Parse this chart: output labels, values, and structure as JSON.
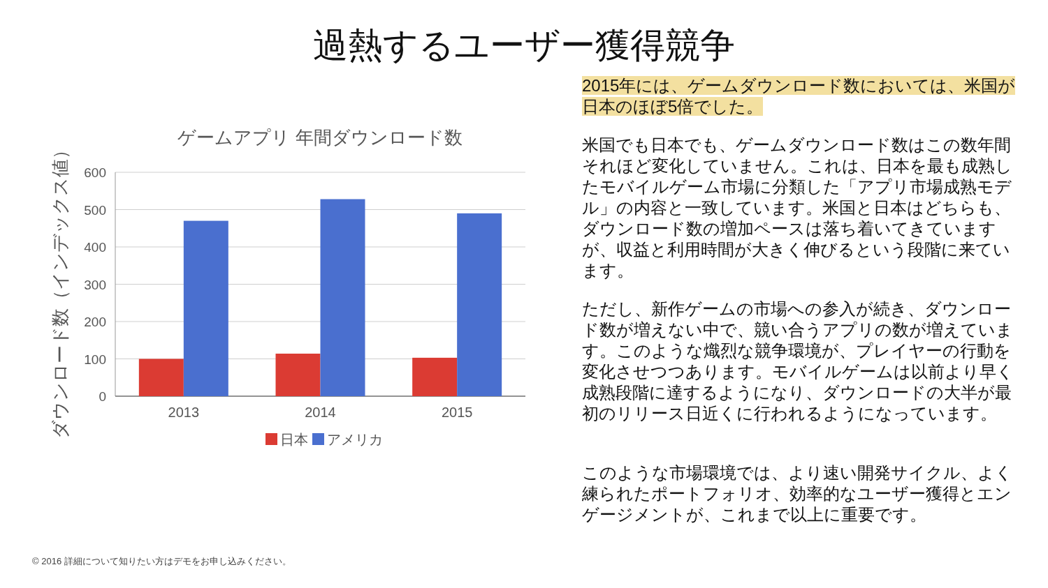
{
  "chart_data": {
    "type": "bar",
    "title": "過熱するユーザー獲得競争",
    "subtitle": "ゲームアプリ 年間ダウンロード数",
    "ylabel": "ダウンロード数（インデックス値）",
    "categories": [
      "2013",
      "2014",
      "2015"
    ],
    "series": [
      {
        "name": "日本",
        "color": "#db3b33",
        "values": [
          100,
          114,
          103
        ]
      },
      {
        "name": "アメリカ",
        "color": "#4a6fcf",
        "values": [
          470,
          528,
          490
        ]
      }
    ],
    "ylim": [
      0,
      600
    ],
    "yticks": [
      0,
      100,
      200,
      300,
      400,
      500,
      600
    ],
    "grid": "y",
    "legend": "bottom",
    "annotations": [
      "2015年には、ゲームダウンロード数においては、米国が日本のほぼ5倍でした。",
      "米国でも日本でも、ゲームダウンロード数はこの数年間それほど変化していません。これは、日本を最も成熟したモバイルゲーム市場に分類した「アプリ市場成熟モデル」の内容と一致しています。米国と日本はどちらも、ダウンロード数の増加ペースは落ち着いてきていますが、収益と利用時間が大きく伸びるという段階に来ています。",
      "ただし、新作ゲームの市場への参入が続き、ダウンロード数が増えない中で、競い合うアプリの数が増えています。このような熾烈な競争環境が、プレイヤーの行動を変化させつつあります。モバイルゲームは以前より早く成熟段階に達するようになり、ダウンロードの大半が最初のリリース日近くに行われるようになっています。",
      "このような市場環境では、より速い開発サイクル、よく練られたポートフォリオ、効率的なユーザー獲得とエンゲージメントが、これまで以上に重要です。",
      "© 2016 詳細について知りたい方はデモをお申し込みください。"
    ]
  }
}
